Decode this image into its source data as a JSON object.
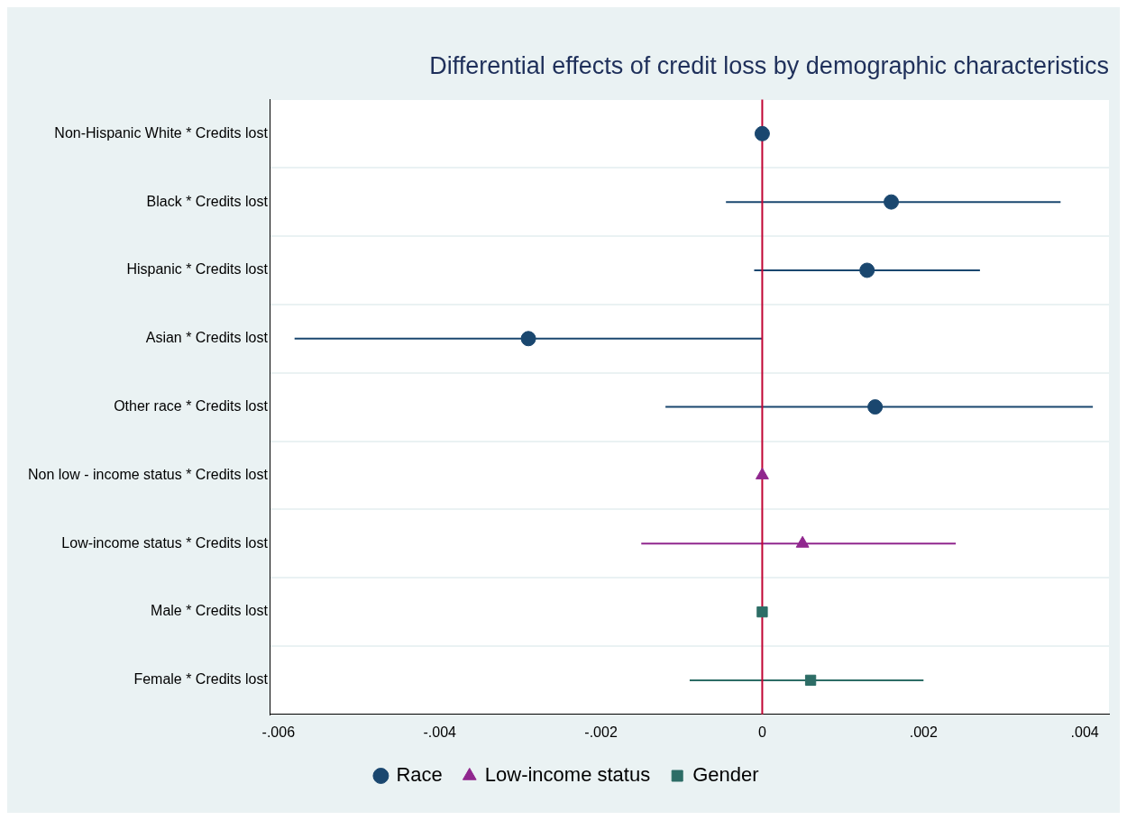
{
  "chart_data": {
    "type": "scatter",
    "orientation": "horizontal",
    "title": "Differential effects of credit loss by demographic characteristics",
    "categories": [
      "Non-Hispanic White * Credits lost",
      "Black * Credits lost",
      "Hispanic * Credits lost",
      "Asian * Credits lost",
      "Other race * Credits lost",
      "Non low - income status * Credits lost",
      "Low-income status * Credits lost",
      "Male * Credits lost",
      "Female * Credits lost"
    ],
    "series": [
      {
        "name": "Race",
        "color": "#1a476f",
        "marker": "circle",
        "values": [
          0,
          0.0016,
          0.0013,
          -0.0029,
          0.0014,
          null,
          null,
          null,
          null
        ],
        "errors": [
          null,
          [
            -0.00045,
            0.0037
          ],
          [
            -0.0001,
            0.0027
          ],
          [
            -0.0058,
            0
          ],
          [
            -0.0012,
            0.0041
          ],
          null,
          null,
          null,
          null
        ]
      },
      {
        "name": "Low-income status",
        "color": "#90278e",
        "marker": "triangle",
        "values": [
          null,
          null,
          null,
          null,
          null,
          0,
          0.0005,
          null,
          null
        ],
        "errors": [
          null,
          null,
          null,
          null,
          null,
          null,
          [
            -0.0015,
            0.0024
          ],
          null,
          null
        ]
      },
      {
        "name": "Gender",
        "color": "#2d6d66",
        "marker": "square",
        "values": [
          null,
          null,
          null,
          null,
          null,
          null,
          null,
          0,
          0.0006
        ],
        "errors": [
          null,
          null,
          null,
          null,
          null,
          null,
          null,
          null,
          [
            -0.0009,
            0.002
          ]
        ]
      }
    ],
    "xlim": [
      -0.0061,
      0.0043
    ],
    "xticks": [
      {
        "value": -0.006,
        "label": "-.006"
      },
      {
        "value": -0.004,
        "label": "-.004"
      },
      {
        "value": -0.002,
        "label": "-.002"
      },
      0,
      {
        "value": 0.002,
        "label": ".002"
      },
      {
        "value": 0.004,
        "label": ".004"
      }
    ],
    "ref_lines": [
      {
        "axis": "x",
        "value": 0,
        "color": "#c10534"
      }
    ],
    "grid": "y",
    "legend": "bottom"
  }
}
